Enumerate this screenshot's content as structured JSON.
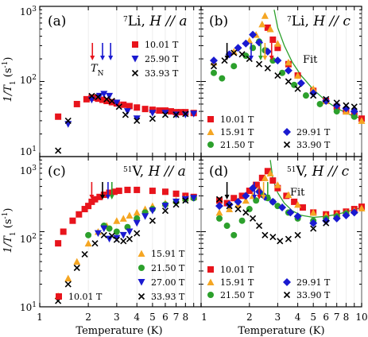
{
  "chart_data": [
    {
      "id": "a",
      "type": "scatter",
      "panel_label": "(a)",
      "title": "7Li, H // a",
      "nucleus_sup": "7",
      "nucleus": "Li",
      "field_dir": "H // a",
      "xlabel": "",
      "ylabel": "1/T1 (s-1)",
      "xscale": "log",
      "yscale": "log",
      "xlim": [
        1,
        10
      ],
      "ylim": [
        10,
        1000
      ],
      "annotation": "TN",
      "arrows": [
        {
          "x": 2.12,
          "color": "#e8141c"
        },
        {
          "x": 2.45,
          "color": "#1a1ad0"
        },
        {
          "x": 2.75,
          "color": "#1a1ad0"
        }
      ],
      "series": [
        {
          "name": "10.01 T",
          "marker": "square",
          "color": "#e8141c",
          "x": [
            1.3,
            1.7,
            1.95,
            2.1,
            2.2,
            2.3,
            2.45,
            2.6,
            2.8,
            3.0,
            3.3,
            3.6,
            4.0,
            4.5,
            5.0,
            5.5,
            6.0,
            6.5,
            7.0,
            7.5,
            8.0,
            9.0
          ],
          "y": [
            34,
            50,
            58,
            61,
            61,
            59,
            57,
            55,
            53,
            51,
            49,
            47,
            45,
            43,
            42,
            41,
            41,
            40,
            39,
            39,
            39,
            38
          ]
        },
        {
          "name": "25.90 T",
          "marker": "triangle-down",
          "color": "#1a1ad0",
          "x": [
            1.5,
            2.1,
            2.35,
            2.5,
            2.7,
            3.0,
            3.5,
            4.0,
            5.0,
            6.0,
            7.0,
            8.0,
            9.0
          ],
          "y": [
            27,
            57,
            64,
            68,
            64,
            52,
            40,
            32,
            38,
            38,
            36,
            36,
            37
          ]
        },
        {
          "name": "33.93 T",
          "marker": "x",
          "color": "#000000",
          "x": [
            1.3,
            1.5,
            2.1,
            2.3,
            2.6,
            2.8,
            3.1,
            3.4,
            4.0,
            5.0,
            6.0,
            7.0,
            8.0
          ],
          "y": [
            12,
            30,
            64,
            62,
            58,
            55,
            46,
            36,
            30,
            32,
            36,
            36,
            37
          ]
        }
      ]
    },
    {
      "id": "b",
      "type": "scatter",
      "panel_label": "(b)",
      "title": "7Li, H // c",
      "nucleus_sup": "7",
      "nucleus": "Li",
      "field_dir": "H // c",
      "xlabel": "",
      "ylabel": "",
      "xscale": "log",
      "yscale": "log",
      "xlim": [
        1,
        10
      ],
      "ylim": [
        10,
        1000
      ],
      "fit_label": "Fit",
      "arrows": [
        {
          "x": 1.45,
          "color": "#000000"
        },
        {
          "x": 2.05,
          "color": "#1a1ad0"
        },
        {
          "x": 2.35,
          "color": "#2ca02c"
        },
        {
          "x": 2.5,
          "color": "#f5a623"
        },
        {
          "x": 2.75,
          "color": "#e8141c"
        }
      ],
      "fit": {
        "x": [
          2.85,
          3.0,
          3.3,
          3.7,
          4.2,
          5.0,
          6.0,
          7.0,
          8.5,
          10.0
        ],
        "y": [
          900,
          520,
          300,
          180,
          120,
          78,
          55,
          44,
          36,
          32
        ]
      },
      "series": [
        {
          "name": "10.01 T",
          "marker": "square",
          "color": "#e8141c",
          "x": [
            2.6,
            2.8,
            3.0,
            3.5,
            4.0,
            5.0,
            6.0,
            7.0,
            8.0,
            9.0,
            10.0
          ],
          "y": [
            520,
            360,
            280,
            170,
            120,
            75,
            55,
            46,
            40,
            36,
            32
          ]
        },
        {
          "name": "15.91 T",
          "marker": "triangle-up",
          "color": "#f5a623",
          "x": [
            1.2,
            1.6,
            2.0,
            2.2,
            2.4,
            2.5,
            2.7,
            3.0,
            3.5,
            4.0,
            5.0,
            6.0,
            8.0,
            10.0
          ],
          "y": [
            180,
            250,
            350,
            420,
            580,
            750,
            500,
            320,
            180,
            120,
            80,
            55,
            40,
            30
          ]
        },
        {
          "name": "21.50 T",
          "marker": "circle",
          "color": "#2ca02c",
          "x": [
            1.2,
            1.35,
            1.6,
            1.9,
            2.1,
            2.3,
            2.5,
            2.8,
            3.2,
            3.8,
            4.5,
            5.5,
            7.0,
            9.0
          ],
          "y": [
            130,
            110,
            160,
            220,
            280,
            340,
            260,
            190,
            130,
            90,
            65,
            50,
            40,
            34
          ]
        },
        {
          "name": "29.91 T",
          "marker": "diamond",
          "color": "#1a1ad0",
          "x": [
            1.2,
            1.5,
            1.7,
            1.9,
            2.1,
            2.3,
            2.6,
            3.0,
            3.5,
            4.2,
            5.0,
            6.0,
            7.0,
            8.0,
            9.0
          ],
          "y": [
            190,
            230,
            280,
            320,
            420,
            330,
            250,
            190,
            140,
            95,
            70,
            55,
            48,
            44,
            40
          ]
        },
        {
          "name": "33.90 T",
          "marker": "x",
          "color": "#000000",
          "x": [
            1.2,
            1.4,
            1.6,
            1.8,
            2.0,
            2.3,
            2.6,
            3.0,
            3.5,
            4.0,
            5.0,
            6.0,
            7.0,
            8.0,
            9.0
          ],
          "y": [
            160,
            190,
            240,
            230,
            200,
            170,
            150,
            120,
            100,
            80,
            65,
            58,
            52,
            48,
            46
          ]
        }
      ]
    },
    {
      "id": "c",
      "type": "scatter",
      "panel_label": "(c)",
      "title": "51V, H // a",
      "nucleus_sup": "51",
      "nucleus": "V",
      "field_dir": "H // a",
      "xlabel": "Temperature (K)",
      "ylabel": "1/T1 (s-1)",
      "xscale": "log",
      "yscale": "log",
      "xlim": [
        1,
        10
      ],
      "ylim": [
        10,
        1000
      ],
      "arrows": [
        {
          "x": 2.1,
          "color": "#e8141c"
        },
        {
          "x": 2.45,
          "color": "#000000"
        },
        {
          "x": 2.65,
          "color": "#1a1ad0"
        },
        {
          "x": 2.8,
          "color": "#2ca02c"
        }
      ],
      "series": [
        {
          "name": "10.01 T",
          "marker": "square",
          "color": "#e8141c",
          "x": [
            1.3,
            1.4,
            1.6,
            1.75,
            1.9,
            2.0,
            2.1,
            2.2,
            2.35,
            2.5,
            2.7,
            2.9,
            3.1,
            3.5,
            4.0,
            5.0,
            6.0,
            7.0,
            8.0,
            9.0
          ],
          "y": [
            70,
            100,
            140,
            170,
            200,
            220,
            250,
            270,
            290,
            310,
            330,
            340,
            350,
            360,
            360,
            350,
            340,
            320,
            300,
            290
          ]
        },
        {
          "name": "15.91 T",
          "marker": "triangle-up",
          "color": "#f5a623",
          "x": [
            1.3,
            1.5,
            1.7,
            2.0,
            2.3,
            2.6,
            3.0,
            3.3,
            3.6,
            4.0,
            4.5,
            5.0,
            6.0,
            7.0,
            8.0
          ],
          "y": [
            14,
            24,
            40,
            70,
            100,
            120,
            140,
            150,
            165,
            180,
            200,
            220,
            240,
            260,
            280
          ]
        },
        {
          "name": "21.50 T",
          "marker": "circle",
          "color": "#2ca02c",
          "x": [
            2.0,
            2.5,
            2.7,
            3.0,
            3.5,
            4.0,
            4.5,
            5.0,
            6.0,
            7.0,
            8.0,
            9.0
          ],
          "y": [
            90,
            120,
            110,
            100,
            115,
            150,
            180,
            200,
            230,
            250,
            270,
            280
          ]
        },
        {
          "name": "27.00 T",
          "marker": "triangle-down",
          "color": "#1a1ad0",
          "x": [
            2.3,
            2.5,
            2.7,
            3.0,
            3.3,
            3.6,
            4.0,
            4.5,
            5.0,
            6.0,
            7.0,
            8.0,
            9.0
          ],
          "y": [
            95,
            110,
            80,
            82,
            90,
            100,
            130,
            160,
            190,
            220,
            250,
            270,
            280
          ]
        },
        {
          "name": "33.93 T",
          "marker": "x",
          "color": "#000000",
          "x": [
            1.3,
            1.5,
            1.7,
            1.9,
            2.2,
            2.5,
            2.8,
            3.0,
            3.3,
            3.6,
            4.0,
            5.0,
            6.0,
            7.0,
            8.0
          ],
          "y": [
            12,
            20,
            33,
            50,
            70,
            90,
            88,
            78,
            75,
            80,
            95,
            140,
            190,
            230,
            260
          ]
        }
      ]
    },
    {
      "id": "d",
      "type": "scatter",
      "panel_label": "(d)",
      "title": "51V, H // c",
      "nucleus_sup": "51",
      "nucleus": "V",
      "field_dir": "H // c",
      "xlabel": "Temperature (K)",
      "ylabel": "",
      "xscale": "log",
      "yscale": "log",
      "xlim": [
        1,
        10
      ],
      "ylim": [
        10,
        1000
      ],
      "fit_label": "Fit",
      "arrows": [
        {
          "x": 1.45,
          "color": "#000000"
        },
        {
          "x": 2.15,
          "color": "#1a1ad0"
        },
        {
          "x": 2.3,
          "color": "#e8141c"
        },
        {
          "x": 2.45,
          "color": "#f5a623"
        },
        {
          "x": 2.6,
          "color": "#2ca02c"
        }
      ],
      "fit": {
        "x": [
          2.7,
          2.8,
          3.0,
          3.3,
          3.7,
          4.2,
          5.0,
          6.0,
          7.0,
          8.5,
          10.0
        ],
        "y": [
          900,
          500,
          330,
          240,
          190,
          165,
          155,
          160,
          170,
          190,
          210
        ]
      },
      "series": [
        {
          "name": "10.01 T",
          "marker": "square",
          "color": "#e8141c",
          "x": [
            1.3,
            1.45,
            1.6,
            1.8,
            2.0,
            2.2,
            2.4,
            2.6,
            2.8,
            3.0,
            3.4,
            3.8,
            4.3,
            5.0,
            6.0,
            7.0,
            8.0,
            9.0,
            10.0
          ],
          "y": [
            260,
            240,
            280,
            300,
            350,
            420,
            520,
            640,
            480,
            380,
            300,
            250,
            210,
            180,
            170,
            175,
            185,
            200,
            215
          ]
        },
        {
          "name": "15.91 T",
          "marker": "triangle-up",
          "color": "#f5a623",
          "x": [
            1.3,
            1.5,
            1.7,
            1.9,
            2.1,
            2.3,
            2.5,
            2.7,
            3.0,
            3.5,
            4.0,
            5.0,
            6.0,
            7.0,
            8.0,
            9.0,
            10.0
          ],
          "y": [
            180,
            200,
            230,
            260,
            300,
            380,
            520,
            600,
            420,
            310,
            230,
            180,
            165,
            170,
            180,
            190,
            205
          ]
        },
        {
          "name": "21.50 T",
          "marker": "circle",
          "color": "#2ca02c",
          "x": [
            1.3,
            1.45,
            1.6,
            1.8,
            2.0,
            2.2,
            2.4,
            2.6,
            2.8,
            3.0,
            3.5,
            4.0,
            5.0,
            6.0,
            7.0,
            8.0
          ],
          "y": [
            150,
            120,
            90,
            140,
            200,
            260,
            310,
            280,
            250,
            220,
            180,
            150,
            140,
            150,
            160,
            175
          ]
        },
        {
          "name": "29.91 T",
          "marker": "diamond",
          "color": "#1a1ad0",
          "x": [
            1.3,
            1.5,
            1.7,
            1.9,
            2.1,
            2.3,
            2.5,
            2.8,
            3.2,
            3.6,
            4.0,
            5.0,
            6.0,
            7.0,
            8.0,
            9.0
          ],
          "y": [
            220,
            230,
            250,
            300,
            380,
            340,
            290,
            250,
            210,
            180,
            160,
            130,
            140,
            150,
            165,
            180
          ]
        },
        {
          "name": "33.90 T",
          "marker": "x",
          "color": "#000000",
          "x": [
            1.3,
            1.5,
            1.7,
            1.9,
            2.1,
            2.3,
            2.5,
            2.8,
            3.1,
            3.5,
            4.0,
            5.0,
            6.0
          ],
          "y": [
            270,
            220,
            200,
            180,
            150,
            120,
            90,
            85,
            75,
            80,
            90,
            110,
            130
          ]
        }
      ]
    }
  ],
  "legend_groups": {
    "a": [
      0,
      1,
      2
    ],
    "b": [
      0,
      1,
      2,
      3,
      4
    ],
    "c": [
      1,
      2,
      3,
      0,
      4
    ],
    "d": [
      0,
      1,
      2,
      3,
      4
    ]
  },
  "axis": {
    "x_ticks": [
      1,
      2,
      3,
      4,
      5,
      6,
      7,
      8,
      9,
      10
    ],
    "x_tick_labels_left": [
      "1",
      "2",
      "3",
      "4",
      "5",
      "6",
      "7",
      "8"
    ],
    "x_tick_labels_right": [
      "1",
      "2",
      "3",
      "4",
      "5",
      "6",
      "7",
      "8",
      "10"
    ],
    "y_major": [
      10,
      100,
      1000
    ],
    "y_labels_top": [
      "10",
      "10",
      "10"
    ],
    "y_labels_exp": [
      "1",
      "2",
      "3"
    ],
    "y_labels_bottom": [
      "10",
      "10",
      "10"
    ],
    "ylabel_text": "1/T",
    "ylabel_sub": "1",
    "ylabel_units": " (s",
    "ylabel_sup": "-1",
    "ylabel_close": ")",
    "xlabel_text": "Temperature (K)",
    "tn_label": "T",
    "tn_sub": "N"
  }
}
